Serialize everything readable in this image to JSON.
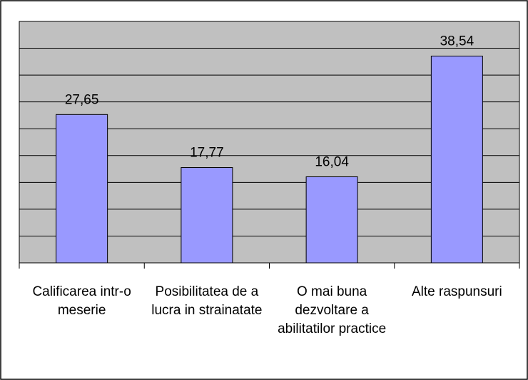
{
  "chart_data": {
    "type": "bar",
    "categories": [
      "Calificarea intr-o meserie",
      "Posibilitatea de a lucra in strainatate",
      "O mai buna dezvoltare a abilitatilor practice",
      "Alte raspunsuri"
    ],
    "values": [
      27.65,
      17.77,
      16.04,
      38.54
    ],
    "value_labels": [
      "27,65",
      "17,77",
      "16,04",
      "38,54"
    ],
    "color": "#9999ff",
    "ylim": [
      0,
      45
    ],
    "yticks": [
      0,
      5,
      10,
      15,
      20,
      25,
      30,
      35,
      40,
      45
    ],
    "grid": true
  }
}
